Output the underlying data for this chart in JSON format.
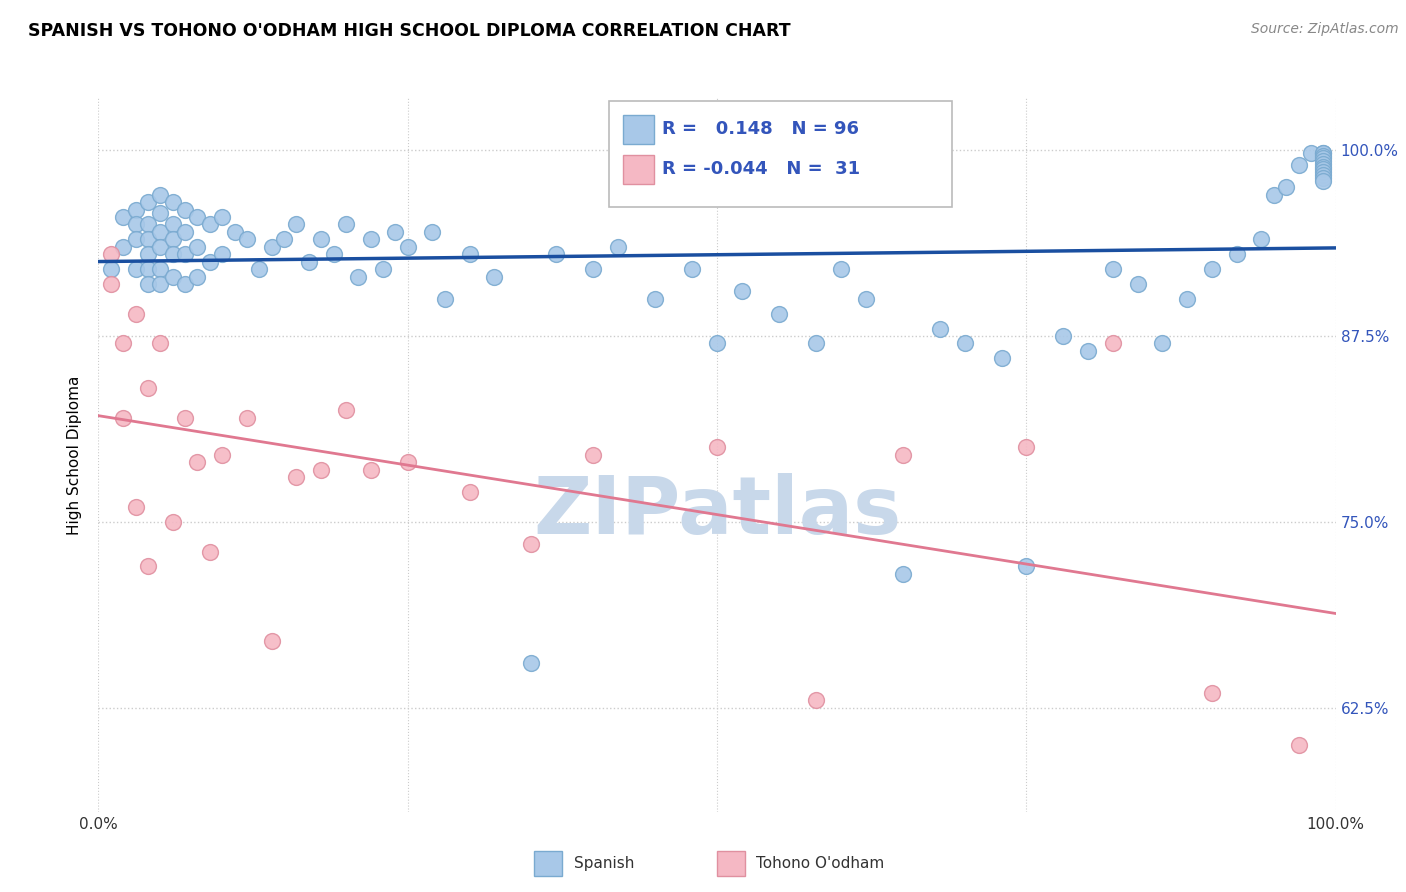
{
  "title": "SPANISH VS TOHONO O'ODHAM HIGH SCHOOL DIPLOMA CORRELATION CHART",
  "source": "Source: ZipAtlas.com",
  "ylabel": "High School Diploma",
  "xlim": [
    0.0,
    1.0
  ],
  "ylim": [
    0.555,
    1.035
  ],
  "yticks": [
    0.625,
    0.75,
    0.875,
    1.0
  ],
  "ytick_labels": [
    "62.5%",
    "75.0%",
    "87.5%",
    "100.0%"
  ],
  "xticks": [
    0.0,
    0.25,
    0.5,
    0.75,
    1.0
  ],
  "xtick_labels": [
    "0.0%",
    "",
    "",
    "",
    "100.0%"
  ],
  "legend1_r": "0.148",
  "legend1_n": "96",
  "legend2_r": "-0.044",
  "legend2_n": "31",
  "blue_color": "#a8c8e8",
  "blue_edge": "#7aaad0",
  "pink_color": "#f5b8c4",
  "pink_edge": "#e090a0",
  "trend_blue": "#1a4fa0",
  "trend_pink": "#e07890",
  "watermark": "ZIPatlas",
  "watermark_color": "#c8d8ea",
  "blue_x": [
    0.01,
    0.02,
    0.02,
    0.03,
    0.03,
    0.03,
    0.03,
    0.04,
    0.04,
    0.04,
    0.04,
    0.04,
    0.04,
    0.05,
    0.05,
    0.05,
    0.05,
    0.05,
    0.05,
    0.06,
    0.06,
    0.06,
    0.06,
    0.06,
    0.07,
    0.07,
    0.07,
    0.07,
    0.08,
    0.08,
    0.08,
    0.09,
    0.09,
    0.1,
    0.1,
    0.11,
    0.12,
    0.13,
    0.14,
    0.15,
    0.16,
    0.17,
    0.18,
    0.19,
    0.2,
    0.21,
    0.22,
    0.23,
    0.24,
    0.25,
    0.27,
    0.28,
    0.3,
    0.32,
    0.35,
    0.37,
    0.4,
    0.42,
    0.45,
    0.48,
    0.5,
    0.52,
    0.55,
    0.58,
    0.6,
    0.62,
    0.65,
    0.68,
    0.7,
    0.73,
    0.75,
    0.78,
    0.8,
    0.82,
    0.84,
    0.86,
    0.88,
    0.9,
    0.92,
    0.94,
    0.95,
    0.96,
    0.97,
    0.98,
    0.99,
    0.99,
    0.99,
    0.99,
    0.99,
    0.99,
    0.99,
    0.99,
    0.99,
    0.99,
    0.99,
    0.99
  ],
  "blue_y": [
    0.92,
    0.955,
    0.935,
    0.96,
    0.95,
    0.94,
    0.92,
    0.965,
    0.95,
    0.94,
    0.93,
    0.92,
    0.91,
    0.97,
    0.958,
    0.945,
    0.935,
    0.92,
    0.91,
    0.965,
    0.95,
    0.94,
    0.93,
    0.915,
    0.96,
    0.945,
    0.93,
    0.91,
    0.955,
    0.935,
    0.915,
    0.95,
    0.925,
    0.955,
    0.93,
    0.945,
    0.94,
    0.92,
    0.935,
    0.94,
    0.95,
    0.925,
    0.94,
    0.93,
    0.95,
    0.915,
    0.94,
    0.92,
    0.945,
    0.935,
    0.945,
    0.9,
    0.93,
    0.915,
    0.655,
    0.93,
    0.92,
    0.935,
    0.9,
    0.92,
    0.87,
    0.905,
    0.89,
    0.87,
    0.92,
    0.9,
    0.715,
    0.88,
    0.87,
    0.86,
    0.72,
    0.875,
    0.865,
    0.92,
    0.91,
    0.87,
    0.9,
    0.92,
    0.93,
    0.94,
    0.97,
    0.975,
    0.99,
    0.998,
    0.998,
    0.998,
    0.996,
    0.995,
    0.993,
    0.991,
    0.989,
    0.987,
    0.985,
    0.983,
    0.981,
    0.979
  ],
  "pink_x": [
    0.01,
    0.01,
    0.02,
    0.02,
    0.03,
    0.03,
    0.04,
    0.04,
    0.05,
    0.06,
    0.07,
    0.08,
    0.09,
    0.1,
    0.12,
    0.14,
    0.16,
    0.18,
    0.2,
    0.22,
    0.25,
    0.3,
    0.35,
    0.4,
    0.5,
    0.58,
    0.65,
    0.75,
    0.82,
    0.9,
    0.97
  ],
  "pink_y": [
    0.93,
    0.91,
    0.87,
    0.82,
    0.89,
    0.76,
    0.84,
    0.72,
    0.87,
    0.75,
    0.82,
    0.79,
    0.73,
    0.795,
    0.82,
    0.67,
    0.78,
    0.785,
    0.825,
    0.785,
    0.79,
    0.77,
    0.735,
    0.795,
    0.8,
    0.63,
    0.795,
    0.8,
    0.87,
    0.635,
    0.6
  ]
}
